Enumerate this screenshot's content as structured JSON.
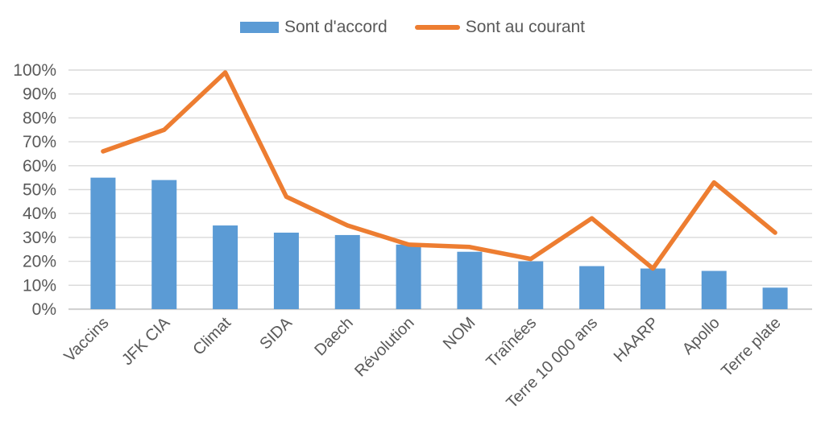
{
  "chart_data": {
    "type": "bar",
    "subtype": "bar+line combo",
    "title": "",
    "xlabel": "",
    "ylabel": "",
    "ylim": [
      0,
      100
    ],
    "ytick_step": 10,
    "ytick_suffix": "%",
    "grid": true,
    "legend_position": "top",
    "categories": [
      "Vaccins",
      "JFK CIA",
      "Climat",
      "SIDA",
      "Daech",
      "Révolution",
      "NOM",
      "Traînées",
      "Terre 10 000 ans",
      "HAARP",
      "Apollo",
      "Terre plate"
    ],
    "series": [
      {
        "name": "Sont d'accord",
        "type": "bar",
        "color": "#5B9BD5",
        "values": [
          55,
          54,
          35,
          32,
          31,
          27,
          24,
          20,
          18,
          17,
          16,
          9
        ]
      },
      {
        "name": "Sont au courant",
        "type": "line",
        "color": "#ED7D31",
        "values": [
          66,
          75,
          99,
          47,
          35,
          27,
          26,
          21,
          38,
          17,
          53,
          32
        ]
      }
    ]
  },
  "colors": {
    "bar": "#5B9BD5",
    "line": "#ED7D31",
    "gridline": "#D9D9D9",
    "axis_line": "#D2D2D2",
    "tick_text": "#595959",
    "legend_text": "#595959"
  },
  "legend": {
    "items": [
      {
        "label": "Sont d'accord",
        "swatch": "bar"
      },
      {
        "label": "Sont au courant",
        "swatch": "line"
      }
    ]
  }
}
